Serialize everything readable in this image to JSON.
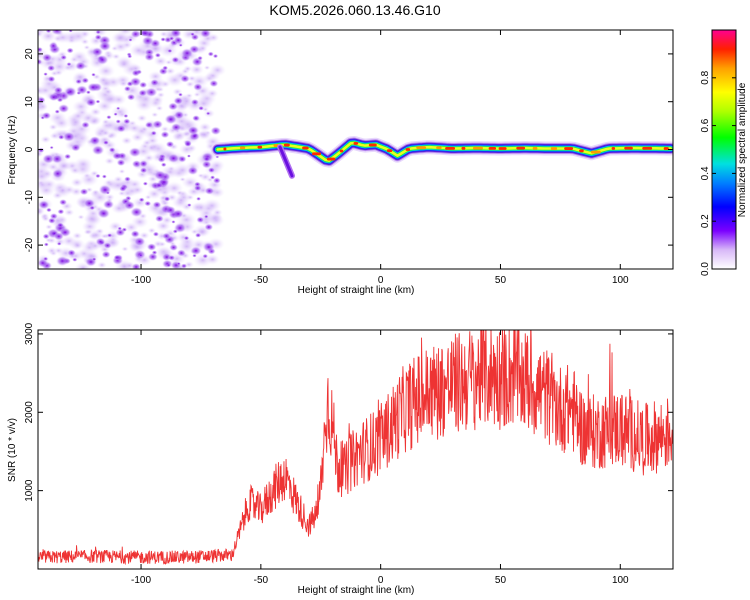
{
  "title": "KOM5.2026.060.13.46.G10",
  "chart_data": [
    {
      "type": "heatmap",
      "xlabel": "Height of straight line (km)",
      "ylabel": "Frequency (Hz)",
      "xlim": [
        -143,
        122
      ],
      "ylim": [
        -25,
        25
      ],
      "xticks": [
        -100,
        -50,
        0,
        50,
        100
      ],
      "yticks": [
        -20,
        -10,
        0,
        10,
        20
      ],
      "noise_region_x": [
        -143,
        -68
      ],
      "signal_track": {
        "x": [
          -68,
          -60,
          -50,
          -40,
          -35,
          -30,
          -25,
          -22,
          -18,
          -12,
          -7,
          -2,
          3,
          7,
          12,
          20,
          30,
          40,
          50,
          60,
          70,
          80,
          88,
          95,
          105,
          122
        ],
        "freq": [
          0,
          0.3,
          0.5,
          1.0,
          0.6,
          0.2,
          -1.5,
          -2.5,
          -1.0,
          1.5,
          0.8,
          1.0,
          0,
          -1.3,
          0.2,
          0.5,
          0.2,
          0.3,
          0.2,
          0.3,
          0.2,
          0.2,
          -0.8,
          0.2,
          0.3,
          0.2
        ]
      },
      "colorbar": {
        "label": "Normalized spectral amplitude",
        "range": [
          0,
          1
        ],
        "ticks": [
          0.0,
          0.2,
          0.4,
          0.6,
          0.8
        ],
        "tick_labels": [
          "0.0",
          "0.2",
          "0.4",
          "0.6",
          "0.8"
        ]
      }
    },
    {
      "type": "line",
      "xlabel": "Height of straight line (km)",
      "ylabel": "SNR (10 * v/v)",
      "xlim": [
        -143,
        122
      ],
      "ylim": [
        0,
        3050
      ],
      "xticks": [
        -100,
        -50,
        0,
        50,
        100
      ],
      "yticks": [
        1000,
        2000,
        3000
      ],
      "color": "#ee3333",
      "series": [
        {
          "name": "SNR",
          "x": [
            -143,
            -120,
            -100,
            -80,
            -62,
            -58,
            -55,
            -50,
            -45,
            -40,
            -35,
            -30,
            -26,
            -22,
            -20,
            -18,
            -15,
            -10,
            -5,
            0,
            10,
            20,
            30,
            40,
            45,
            50,
            55,
            60,
            70,
            75,
            80,
            85,
            90,
            100,
            110,
            122
          ],
          "values": [
            150,
            160,
            150,
            150,
            180,
            550,
            850,
            750,
            1000,
            1200,
            850,
            550,
            750,
            2150,
            1800,
            1300,
            1250,
            1450,
            1550,
            1650,
            2050,
            2250,
            2350,
            2450,
            2500,
            2450,
            2500,
            2400,
            2200,
            2050,
            2050,
            1750,
            1750,
            1800,
            1650,
            1750
          ]
        }
      ]
    }
  ]
}
